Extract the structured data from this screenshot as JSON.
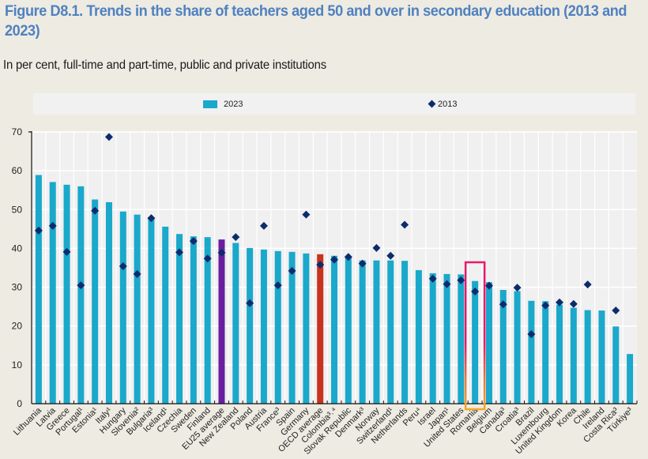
{
  "title": "Figure D8.1. Trends in the share of teachers aged 50 and over in secondary education (2013 and 2023)",
  "subtitle": "In per cent, full-time and part-time, public and private institutions",
  "legend": {
    "series_2023": "2023",
    "series_2013": "2013"
  },
  "colors": {
    "bar_default": "#1AA8CB",
    "bar_eu25": "#6A1FA0",
    "bar_oecd": "#C8331E",
    "marker_2013": "#0C2C6B",
    "title": "#4F81C0",
    "highlight_top": "#E8196B",
    "highlight_bottom": "#F5A623"
  },
  "chart_data": {
    "type": "bar",
    "title": "Figure D8.1. Trends in the share of teachers aged 50 and over in secondary education (2013 and 2023)",
    "subtitle": "In per cent, full-time and part-time, public and private institutions",
    "xlabel": "",
    "ylabel": "",
    "ylim": [
      0,
      70
    ],
    "yticks": [
      0,
      10,
      20,
      30,
      40,
      50,
      60,
      70
    ],
    "grid": true,
    "legend_position": "top",
    "highlighted_category": "Romania",
    "categories": [
      "Lithuania",
      "Latvia",
      "Greece",
      "Portugal¹",
      "Estonia¹",
      "Italy¹",
      "Hungary",
      "Slovenia²",
      "Bulgaria³",
      "Iceland¹",
      "Czechia",
      "Sweden",
      "Finland",
      "EU25 average",
      "New Zealand",
      "Poland",
      "Austria",
      "France³",
      "Spain",
      "Germany",
      "OECD average",
      "Colombia³˒⁴",
      "Slovak Republic",
      "Denmark³",
      "Norway",
      "Switzerland¹",
      "Netherlands",
      "Peru⁴",
      "Israel",
      "Japan¹",
      "United States",
      "Romania",
      "Belgium",
      "Canada³",
      "Croatia³",
      "Brazil",
      "Luxembourg",
      "United Kingdom",
      "Korea",
      "Chile",
      "Ireland",
      "Costa Rica³",
      "Türkiye³"
    ],
    "series": [
      {
        "name": "2023",
        "type": "bar",
        "values": [
          58.9,
          57.1,
          56.4,
          56.0,
          52.6,
          51.9,
          49.5,
          48.7,
          47.9,
          45.6,
          43.7,
          43.1,
          42.9,
          42.3,
          41.4,
          40.1,
          39.7,
          39.3,
          39.1,
          38.7,
          38.5,
          38.1,
          38.0,
          36.9,
          36.9,
          36.9,
          36.8,
          34.4,
          33.6,
          33.4,
          33.3,
          31.6,
          31.3,
          29.3,
          29.0,
          26.5,
          26.4,
          25.5,
          24.7,
          24.1,
          24.0,
          19.9,
          12.8
        ]
      },
      {
        "name": "2013",
        "type": "scatter",
        "marker": "diamond",
        "values": [
          44.6,
          45.8,
          39.1,
          30.5,
          49.7,
          68.7,
          35.4,
          33.4,
          47.8,
          null,
          39.0,
          41.9,
          37.4,
          38.9,
          42.9,
          25.9,
          45.8,
          30.5,
          34.2,
          48.7,
          35.8,
          37.1,
          37.8,
          36.1,
          40.1,
          38.1,
          46.1,
          null,
          32.2,
          30.8,
          31.8,
          28.9,
          30.4,
          25.6,
          29.9,
          17.9,
          25.3,
          26.1,
          25.7,
          30.7,
          null,
          24.0,
          null
        ]
      }
    ]
  }
}
